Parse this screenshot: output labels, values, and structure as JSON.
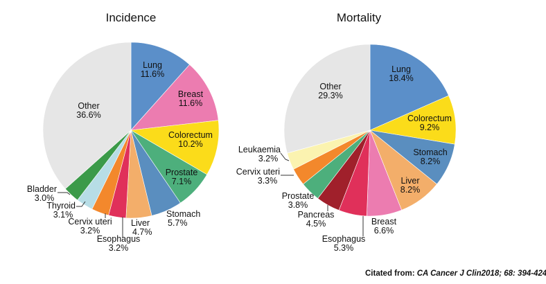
{
  "chart_data": [
    {
      "type": "pie",
      "title": "Incidence",
      "start": "top",
      "direction": "clockwise",
      "slices": [
        {
          "label": "Lung",
          "value": 11.6,
          "text": "11.6%",
          "color": "#5b8fc9"
        },
        {
          "label": "Breast",
          "value": 11.6,
          "text": "11.6%",
          "color": "#ec7cb0"
        },
        {
          "label": "Colorectum",
          "value": 10.2,
          "text": "10.2%",
          "color": "#fbdc1a"
        },
        {
          "label": "Prostate",
          "value": 7.1,
          "text": "7.1%",
          "color": "#4daf7c"
        },
        {
          "label": "Stomach",
          "value": 5.7,
          "text": "5.7%",
          "color": "#5a8ebf"
        },
        {
          "label": "Liver",
          "value": 4.7,
          "text": "4.7%",
          "color": "#f3ae6a"
        },
        {
          "label": "Esophagus",
          "value": 3.2,
          "text": "3.2%",
          "color": "#e0305a"
        },
        {
          "label": "Cervix uteri",
          "value": 3.2,
          "text": "3.2%",
          "color": "#f3882c"
        },
        {
          "label": "Thyroid",
          "value": 3.1,
          "text": "3.1%",
          "color": "#b7dde6"
        },
        {
          "label": "Bladder",
          "value": 3.0,
          "text": "3.0%",
          "color": "#3b9a49"
        },
        {
          "label": "Other",
          "value": 36.6,
          "text": "36.6%",
          "color": "#e6e6e6"
        }
      ]
    },
    {
      "type": "pie",
      "title": "Mortality",
      "start": "top",
      "direction": "clockwise",
      "slices": [
        {
          "label": "Lung",
          "value": 18.4,
          "text": "18.4%",
          "color": "#5b8fc9"
        },
        {
          "label": "Colorectum",
          "value": 9.2,
          "text": "9.2%",
          "color": "#fbdc1a"
        },
        {
          "label": "Stomach",
          "value": 8.2,
          "text": "8.2%",
          "color": "#5a8ebf"
        },
        {
          "label": "Liver",
          "value": 8.2,
          "text": "8.2%",
          "color": "#f3ae6a"
        },
        {
          "label": "Breast",
          "value": 6.6,
          "text": "6.6%",
          "color": "#ec7cb0"
        },
        {
          "label": "Esophagus",
          "value": 5.3,
          "text": "5.3%",
          "color": "#e0305a"
        },
        {
          "label": "Pancreas",
          "value": 4.5,
          "text": "4.5%",
          "color": "#a0202b"
        },
        {
          "label": "Prostate",
          "value": 3.8,
          "text": "3.8%",
          "color": "#4daf7c"
        },
        {
          "label": "Cervix uteri",
          "value": 3.3,
          "text": "3.3%",
          "color": "#f3882c"
        },
        {
          "label": "Leukaemia",
          "value": 3.2,
          "text": "3.2%",
          "color": "#fbf3b0"
        },
        {
          "label": "Other",
          "value": 29.3,
          "text": "29.3%",
          "color": "#e6e6e6"
        }
      ]
    }
  ],
  "citation": {
    "prefix": "Citated from: ",
    "source": "CA Cancer J Clin2018; 68: 394-424"
  }
}
